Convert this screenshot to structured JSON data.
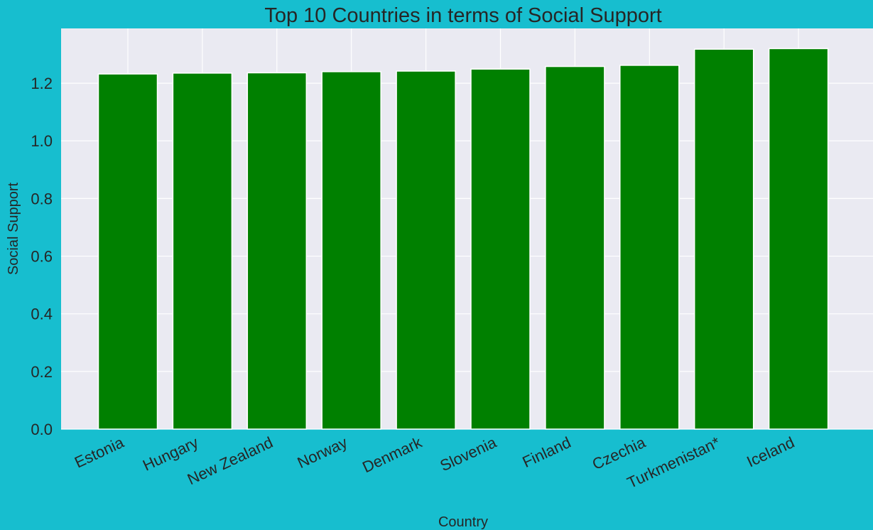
{
  "chart_data": {
    "type": "bar",
    "title": "Top 10 Countries in terms of Social Support",
    "xlabel": "Country",
    "ylabel": "Social Support",
    "categories": [
      "Estonia",
      "Hungary",
      "New Zealand",
      "Norway",
      "Denmark",
      "Slovenia",
      "Finland",
      "Czechia",
      "Turkmenistan*",
      "Iceland"
    ],
    "values": [
      1.232,
      1.235,
      1.236,
      1.24,
      1.242,
      1.249,
      1.258,
      1.262,
      1.318,
      1.32
    ],
    "ylim": [
      0,
      1.39
    ],
    "yticks": [
      "0.0",
      "0.2",
      "0.4",
      "0.6",
      "0.8",
      "1.0",
      "1.2"
    ],
    "ytick_values": [
      0,
      0.2,
      0.4,
      0.6,
      0.8,
      1.0,
      1.2
    ],
    "grid": true,
    "legend": "none",
    "colors": {
      "background": "#17becf",
      "plot_area": "#eaeaf2",
      "bar": "#008000",
      "grid": "#ffffff",
      "text": "#262626"
    }
  }
}
